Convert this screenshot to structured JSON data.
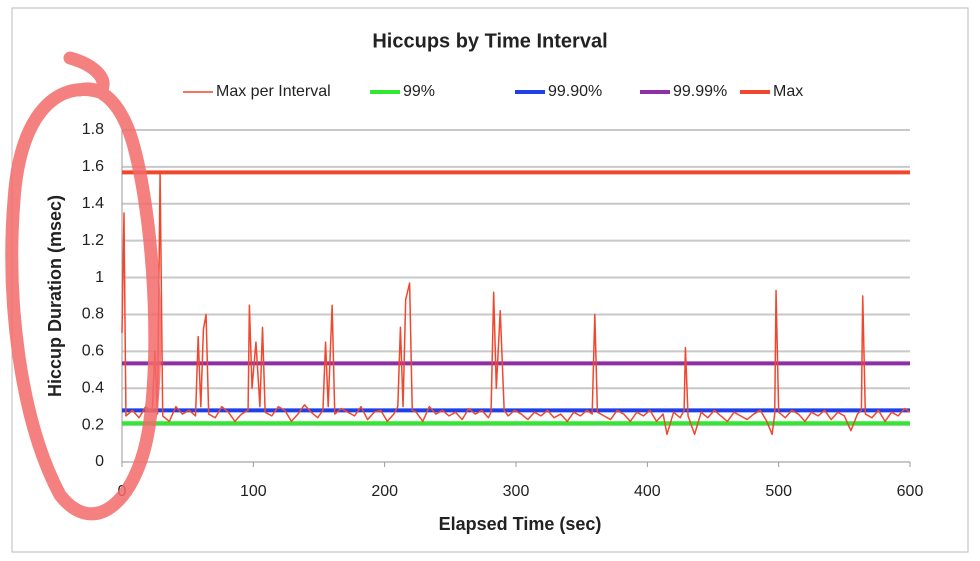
{
  "chart_data": {
    "type": "line",
    "title": "Hiccups by Time Interval",
    "x_label": "Elapsed Time (sec)",
    "y_label": "Hiccup Duration (msec)",
    "xlim": [
      0,
      600
    ],
    "ylim": [
      0,
      1.8
    ],
    "xticks": [
      0,
      100,
      200,
      300,
      400,
      500,
      600
    ],
    "yticks": [
      0,
      0.2,
      0.4,
      0.6,
      0.8,
      1,
      1.2,
      1.4,
      1.6,
      1.8
    ],
    "grid": true,
    "legend": "top",
    "series": [
      {
        "name": "Max per Interval",
        "color": "#f0472f",
        "x": [
          0,
          1.5,
          3,
          8,
          13,
          18,
          23,
          25,
          27,
          29,
          31,
          36,
          41,
          46,
          51,
          56,
          58,
          60,
          62,
          64,
          66,
          71,
          76,
          81,
          86,
          91,
          96,
          97,
          99,
          102,
          105,
          107,
          109,
          114,
          119,
          124,
          129,
          134,
          139,
          144,
          149,
          153,
          155,
          157,
          160,
          162,
          167,
          172,
          177,
          182,
          187,
          192,
          197,
          202,
          207,
          210,
          212,
          214,
          216,
          219,
          221,
          224,
          229,
          234,
          239,
          244,
          249,
          254,
          259,
          264,
          269,
          274,
          279,
          281,
          283,
          285,
          288,
          291,
          294,
          299,
          304,
          309,
          314,
          319,
          324,
          329,
          334,
          339,
          344,
          349,
          354,
          358,
          360,
          362,
          367,
          372,
          377,
          382,
          387,
          392,
          397,
          402,
          407,
          412,
          415,
          420,
          425,
          428,
          429,
          431,
          436,
          441,
          446,
          451,
          456,
          461,
          466,
          471,
          476,
          481,
          486,
          491,
          495,
          497,
          498,
          500,
          505,
          510,
          515,
          520,
          525,
          530,
          535,
          540,
          545,
          550,
          555,
          560,
          563,
          564,
          566,
          571,
          576,
          581,
          586,
          591,
          596,
          600
        ],
        "values": [
          0.7,
          1.35,
          0.25,
          0.28,
          0.24,
          0.3,
          0.27,
          0.6,
          0.26,
          1.57,
          0.25,
          0.22,
          0.3,
          0.26,
          0.28,
          0.25,
          0.68,
          0.3,
          0.72,
          0.8,
          0.26,
          0.24,
          0.3,
          0.27,
          0.22,
          0.26,
          0.28,
          0.85,
          0.4,
          0.65,
          0.3,
          0.73,
          0.27,
          0.25,
          0.3,
          0.28,
          0.22,
          0.26,
          0.31,
          0.27,
          0.24,
          0.28,
          0.65,
          0.3,
          0.85,
          0.26,
          0.29,
          0.27,
          0.25,
          0.3,
          0.23,
          0.27,
          0.28,
          0.22,
          0.26,
          0.3,
          0.73,
          0.3,
          0.88,
          0.97,
          0.28,
          0.27,
          0.22,
          0.3,
          0.26,
          0.28,
          0.25,
          0.27,
          0.23,
          0.29,
          0.26,
          0.28,
          0.24,
          0.27,
          0.92,
          0.4,
          0.82,
          0.28,
          0.25,
          0.28,
          0.26,
          0.23,
          0.27,
          0.25,
          0.28,
          0.24,
          0.26,
          0.22,
          0.27,
          0.25,
          0.28,
          0.26,
          0.8,
          0.27,
          0.25,
          0.23,
          0.28,
          0.26,
          0.22,
          0.27,
          0.25,
          0.28,
          0.22,
          0.26,
          0.15,
          0.27,
          0.24,
          0.28,
          0.62,
          0.25,
          0.15,
          0.27,
          0.24,
          0.28,
          0.25,
          0.22,
          0.27,
          0.25,
          0.23,
          0.26,
          0.28,
          0.22,
          0.15,
          0.26,
          0.93,
          0.27,
          0.24,
          0.28,
          0.26,
          0.22,
          0.27,
          0.25,
          0.28,
          0.23,
          0.27,
          0.25,
          0.17,
          0.26,
          0.28,
          0.9,
          0.26,
          0.24,
          0.28,
          0.22,
          0.27,
          0.25,
          0.29,
          0.27
        ]
      },
      {
        "name": "99%",
        "color": "#2fe82f",
        "x": [
          0,
          600
        ],
        "values": [
          0.21,
          0.21
        ]
      },
      {
        "name": "99.90%",
        "color": "#1f3fe8",
        "x": [
          0,
          600
        ],
        "values": [
          0.28,
          0.28
        ]
      },
      {
        "name": "99.99%",
        "color": "#8e2fa6",
        "x": [
          0,
          600
        ],
        "values": [
          0.535,
          0.535
        ]
      },
      {
        "name": "Max",
        "color": "#f0472f",
        "x": [
          0,
          600
        ],
        "values": [
          1.57,
          1.57
        ]
      }
    ]
  }
}
